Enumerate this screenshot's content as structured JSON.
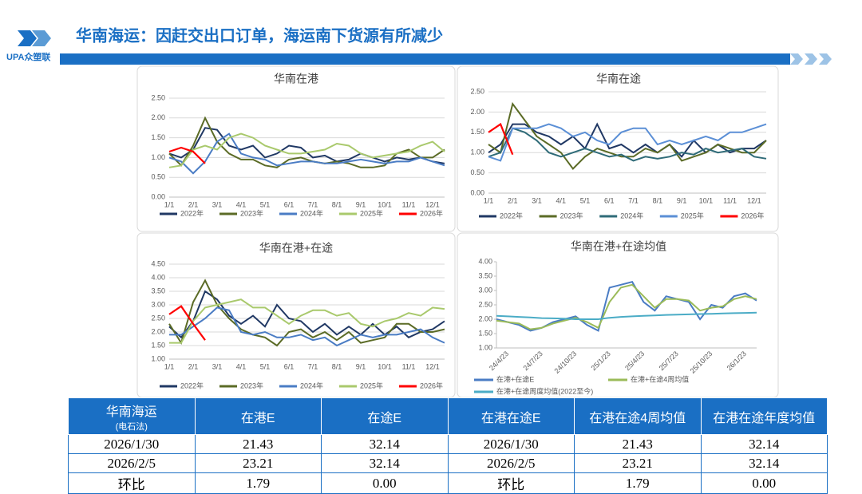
{
  "header": {
    "title": "华南海运：因赶交出口订单，海运南下货源有所减少",
    "logo": "UPA众塑联"
  },
  "chart_data": [
    {
      "type": "line",
      "title": "华南在港",
      "grid": true,
      "legend": "bottom",
      "categories": [
        "1/1",
        null,
        "2/1",
        null,
        "3/1",
        null,
        "4/1",
        null,
        "5/1",
        null,
        "6/1",
        null,
        "7/1",
        null,
        "8/1",
        null,
        "9/1",
        null,
        "10/1",
        null,
        "11/1",
        null,
        "12/1",
        null
      ],
      "ylim": [
        0,
        2.5
      ],
      "yticks": [
        {
          "value": 0,
          "label": "0.00"
        },
        {
          "value": 0.5,
          "label": "0.50"
        },
        {
          "value": 1,
          "label": "1.00"
        },
        {
          "value": 1.5,
          "label": "1.50"
        },
        {
          "value": 2,
          "label": "2.00"
        },
        {
          "value": 2.5,
          "label": "2.50"
        }
      ],
      "series": [
        {
          "name": "2022年",
          "color": "#203864",
          "values": [
            1.1,
            1.0,
            1.2,
            1.75,
            1.7,
            1.3,
            1.2,
            1.3,
            1.0,
            1.1,
            1.3,
            1.25,
            1.0,
            1.05,
            0.9,
            0.95,
            1.1,
            1.0,
            0.9,
            1.0,
            0.95,
            1.0,
            0.9,
            0.85
          ]
        },
        {
          "name": "2023年",
          "color": "#5b6b26",
          "values": [
            1.1,
            0.8,
            1.3,
            2.0,
            1.4,
            1.1,
            0.95,
            0.95,
            0.8,
            0.75,
            0.95,
            1.0,
            0.9,
            0.85,
            0.9,
            0.85,
            0.75,
            0.75,
            0.8,
            1.1,
            1.2,
            1.0,
            1.0,
            1.2
          ]
        },
        {
          "name": "2024年",
          "color": "#4a7cc4",
          "values": [
            1.0,
            0.9,
            0.6,
            0.9,
            1.4,
            1.6,
            1.1,
            1.0,
            0.95,
            0.8,
            0.85,
            0.9,
            0.9,
            0.85,
            0.85,
            0.9,
            0.95,
            0.9,
            0.85,
            0.9,
            0.9,
            1.0,
            0.9,
            0.8
          ]
        },
        {
          "name": "2025年",
          "color": "#a9c96c",
          "values": [
            0.75,
            0.8,
            1.2,
            1.3,
            1.2,
            1.5,
            1.6,
            1.5,
            1.3,
            1.2,
            1.1,
            1.1,
            1.15,
            1.2,
            1.35,
            1.3,
            1.1,
            1.0,
            1.05,
            1.1,
            1.15,
            1.3,
            1.4,
            1.15
          ]
        },
        {
          "name": "2026年",
          "color": "#ff0000",
          "values": [
            1.15,
            1.25,
            1.15,
            0.85,
            null,
            null,
            null,
            null,
            null,
            null,
            null,
            null,
            null,
            null,
            null,
            null,
            null,
            null,
            null,
            null,
            null,
            null,
            null,
            null
          ]
        }
      ]
    },
    {
      "type": "line",
      "title": "华南在途",
      "grid": true,
      "legend": "bottom",
      "categories": [
        "1/1",
        null,
        "2/1",
        null,
        "3/1",
        null,
        "4/1",
        null,
        "5/1",
        null,
        "6/1",
        null,
        "7/1",
        null,
        "8/1",
        null,
        "9/1",
        null,
        "10/1",
        null,
        "11/1",
        null,
        "12/1",
        null
      ],
      "ylim": [
        0,
        2.5
      ],
      "yticks": [
        {
          "value": 0,
          "label": "0.00"
        },
        {
          "value": 0.5,
          "label": "0.50"
        },
        {
          "value": 1,
          "label": "1.00"
        },
        {
          "value": 1.5,
          "label": "1.50"
        },
        {
          "value": 2,
          "label": "2.00"
        },
        {
          "value": 2.5,
          "label": "2.50"
        }
      ],
      "series": [
        {
          "name": "2022年",
          "color": "#203864",
          "values": [
            1.0,
            1.2,
            1.7,
            1.7,
            1.5,
            1.4,
            1.2,
            1.4,
            1.1,
            1.7,
            1.1,
            1.2,
            1.0,
            1.2,
            1.0,
            1.2,
            0.9,
            1.3,
            1.0,
            1.2,
            1.0,
            1.1,
            1.1,
            1.3
          ]
        },
        {
          "name": "2023年",
          "color": "#5b6b26",
          "values": [
            1.2,
            1.0,
            2.2,
            1.8,
            1.4,
            1.2,
            1.0,
            0.6,
            0.9,
            1.1,
            1.0,
            0.9,
            0.9,
            1.1,
            1.0,
            1.2,
            0.8,
            0.9,
            1.0,
            1.2,
            1.1,
            1.0,
            1.0,
            1.3
          ]
        },
        {
          "name": "2024年",
          "color": "#2f6b78",
          "values": [
            0.9,
            1.0,
            1.6,
            1.5,
            1.3,
            1.0,
            0.9,
            1.0,
            1.1,
            1.0,
            0.9,
            0.95,
            0.8,
            0.9,
            0.85,
            0.9,
            1.0,
            0.95,
            1.1,
            1.0,
            1.05,
            1.1,
            0.9,
            0.85
          ]
        },
        {
          "name": "2025年",
          "color": "#5b8fd6",
          "values": [
            0.9,
            0.8,
            1.6,
            1.6,
            1.6,
            1.7,
            1.6,
            1.4,
            1.5,
            1.3,
            1.2,
            1.5,
            1.6,
            1.6,
            1.2,
            1.3,
            1.2,
            1.3,
            1.4,
            1.3,
            1.5,
            1.5,
            1.6,
            1.7
          ]
        },
        {
          "name": "2026年",
          "color": "#ff0000",
          "values": [
            1.5,
            1.7,
            0.95,
            null,
            null,
            null,
            null,
            null,
            null,
            null,
            null,
            null,
            null,
            null,
            null,
            null,
            null,
            null,
            null,
            null,
            null,
            null,
            null,
            null
          ]
        }
      ]
    },
    {
      "type": "line",
      "title": "华南在港+在途",
      "grid": true,
      "legend": "bottom",
      "categories": [
        "1/1",
        null,
        "2/1",
        null,
        "3/1",
        null,
        "4/1",
        null,
        "5/1",
        null,
        "6/1",
        null,
        "7/1",
        null,
        "8/1",
        null,
        "9/1",
        null,
        "10/1",
        null,
        "11/1",
        null,
        "12/1",
        null
      ],
      "ylim": [
        1,
        4.5
      ],
      "yticks": [
        {
          "value": 1,
          "label": "1.00"
        },
        {
          "value": 1.5,
          "label": "1.50"
        },
        {
          "value": 2,
          "label": "2.00"
        },
        {
          "value": 2.5,
          "label": "2.50"
        },
        {
          "value": 3,
          "label": "3.00"
        },
        {
          "value": 3.5,
          "label": "3.50"
        },
        {
          "value": 4,
          "label": "4.00"
        },
        {
          "value": 4.5,
          "label": "4.50"
        }
      ],
      "series": [
        {
          "name": "2022年",
          "color": "#203864",
          "values": [
            2.2,
            1.8,
            2.4,
            3.5,
            3.2,
            2.6,
            2.3,
            2.6,
            2.2,
            3.0,
            2.5,
            2.4,
            2.0,
            2.3,
            1.9,
            2.2,
            1.9,
            2.3,
            1.9,
            2.2,
            1.8,
            2.0,
            2.1,
            2.4
          ]
        },
        {
          "name": "2023年",
          "color": "#5b6b26",
          "values": [
            2.3,
            1.6,
            3.1,
            3.9,
            3.0,
            2.5,
            2.1,
            1.9,
            1.8,
            1.5,
            2.0,
            2.1,
            1.8,
            2.0,
            1.7,
            2.0,
            1.6,
            1.7,
            1.8,
            2.3,
            2.3,
            2.0,
            2.0,
            2.1
          ]
        },
        {
          "name": "2024年",
          "color": "#4a7cc4",
          "values": [
            1.9,
            1.9,
            2.2,
            2.5,
            2.9,
            2.8,
            2.0,
            1.9,
            2.0,
            1.8,
            1.8,
            1.9,
            1.7,
            1.8,
            1.5,
            1.7,
            1.9,
            1.8,
            1.9,
            1.9,
            2.0,
            2.1,
            1.8,
            1.6
          ]
        },
        {
          "name": "2025年",
          "color": "#a9c96c",
          "values": [
            1.6,
            1.6,
            2.4,
            2.9,
            3.0,
            3.1,
            3.2,
            2.9,
            2.9,
            2.6,
            2.3,
            2.6,
            2.8,
            2.8,
            2.6,
            2.7,
            2.3,
            2.2,
            2.4,
            2.5,
            2.7,
            2.6,
            2.9,
            2.85
          ]
        },
        {
          "name": "2026年",
          "color": "#ff0000",
          "values": [
            2.65,
            2.95,
            2.3,
            1.7,
            null,
            null,
            null,
            null,
            null,
            null,
            null,
            null,
            null,
            null,
            null,
            null,
            null,
            null,
            null,
            null,
            null,
            null,
            null,
            null
          ]
        }
      ]
    },
    {
      "type": "line",
      "title": "华南在港+在途均值",
      "grid": false,
      "legend": "bottom",
      "categories": [
        null,
        "24/4/23",
        null,
        null,
        "24/7/23",
        null,
        null,
        "24/10/23",
        null,
        null,
        "25/1/23",
        null,
        null,
        "25/4/23",
        null,
        null,
        "25/7/23",
        null,
        null,
        "25/10/23",
        null,
        null,
        "26/1/23",
        null
      ],
      "ylim": [
        1,
        4
      ],
      "yticks": [
        {
          "value": 1,
          "label": "1.00"
        },
        {
          "value": 1.5,
          "label": "1.50"
        },
        {
          "value": 2,
          "label": "2.00"
        },
        {
          "value": 2.5,
          "label": "2.50"
        },
        {
          "value": 3,
          "label": "3.00"
        },
        {
          "value": 3.5,
          "label": "3.50"
        },
        {
          "value": 4,
          "label": "4.00"
        }
      ],
      "series": [
        {
          "name": "在港+在途E",
          "color": "#4a7cc4",
          "values": [
            2.0,
            1.9,
            1.8,
            1.6,
            1.7,
            1.9,
            2.0,
            2.1,
            1.8,
            1.6,
            3.1,
            3.2,
            3.3,
            2.6,
            2.3,
            2.8,
            2.7,
            2.6,
            2.0,
            2.5,
            2.4,
            2.8,
            2.9,
            2.65
          ]
        },
        {
          "name": "在港+在途4周均值",
          "color": "#9bbb59",
          "values": [
            1.95,
            1.9,
            1.85,
            1.65,
            1.7,
            1.85,
            1.95,
            2.05,
            1.9,
            1.7,
            2.6,
            3.1,
            3.2,
            2.8,
            2.4,
            2.7,
            2.7,
            2.65,
            2.3,
            2.4,
            2.45,
            2.7,
            2.8,
            2.7
          ]
        },
        {
          "name": "在港+在途周度均值(2022至今)",
          "color": "#4bacc6",
          "values": [
            2.12,
            2.1,
            2.08,
            2.06,
            2.04,
            2.03,
            2.02,
            2.0,
            2.0,
            2.0,
            2.05,
            2.08,
            2.1,
            2.12,
            2.13,
            2.15,
            2.16,
            2.17,
            2.18,
            2.19,
            2.2,
            2.21,
            2.22,
            2.23
          ]
        }
      ]
    }
  ],
  "table": {
    "header": [
      "华南海运",
      "在港E",
      "在途E",
      "在港在途E",
      "在港在途4周均值",
      "在港在途年度均值"
    ],
    "header_sub": "(电石法)",
    "rows": [
      [
        "2026/1/30",
        "21.43",
        "32.14",
        "2026/1/30",
        "21.43",
        "32.14"
      ],
      [
        "2026/2/5",
        "23.21",
        "32.14",
        "2026/2/5",
        "23.21",
        "32.14"
      ],
      [
        "环比",
        "1.79",
        "0.00",
        "环比",
        "1.79",
        "0.00"
      ]
    ]
  }
}
